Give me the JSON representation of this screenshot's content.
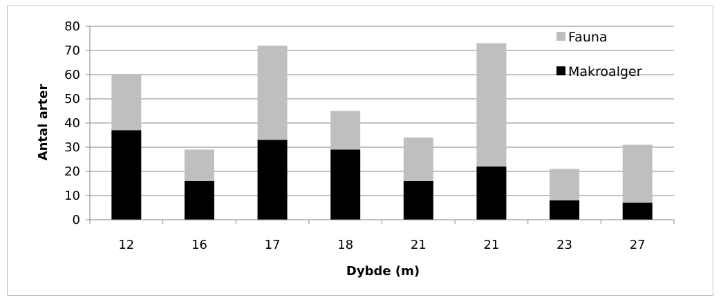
{
  "chart_data": {
    "type": "bar",
    "stacked": true,
    "categories": [
      "12",
      "16",
      "17",
      "18",
      "21",
      "21",
      "23",
      "27"
    ],
    "series": [
      {
        "name": "Makroalger",
        "values": [
          37,
          16,
          33,
          29,
          16,
          22,
          8,
          7
        ],
        "color": "#000000"
      },
      {
        "name": "Fauna",
        "values": [
          23,
          13,
          39,
          16,
          18,
          51,
          13,
          24
        ],
        "color": "#bfbfbf"
      }
    ],
    "title": "",
    "xlabel": "Dybde (m)",
    "ylabel": "Antal arter",
    "ylim": [
      0,
      80
    ],
    "yticks": [
      0,
      10,
      20,
      30,
      40,
      50,
      60,
      70,
      80
    ],
    "grid": true,
    "legend_position": "top-right",
    "legend_order": [
      "Fauna",
      "Makroalger"
    ]
  }
}
